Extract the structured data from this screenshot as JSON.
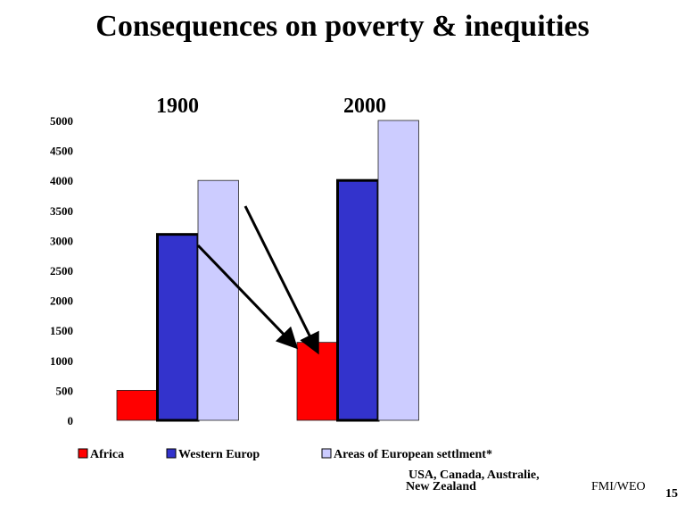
{
  "chart_data": {
    "type": "bar",
    "title": "Consequences on poverty & inequities",
    "categories": [
      "1900",
      "2000"
    ],
    "series": [
      {
        "name": "Africa",
        "color": "#ff0000",
        "values": [
          500,
          1300
        ]
      },
      {
        "name": "Western Europ",
        "color": "#3333cc",
        "values": [
          3100,
          4000
        ]
      },
      {
        "name": "Areas of European settlment*",
        "color": "#ccccff",
        "values": [
          4000,
          5000
        ]
      }
    ],
    "ylim": [
      0,
      5000
    ],
    "yticks": [
      "0",
      "500",
      "1000",
      "1500",
      "2000",
      "2500",
      "3000",
      "3500",
      "4000",
      "4500",
      "5000"
    ],
    "grid": false,
    "legend_position": "bottom",
    "footnote": [
      "USA, Canada, Australie,",
      "New Zealand"
    ],
    "source": "FMI/WEO",
    "page_number": "15"
  }
}
